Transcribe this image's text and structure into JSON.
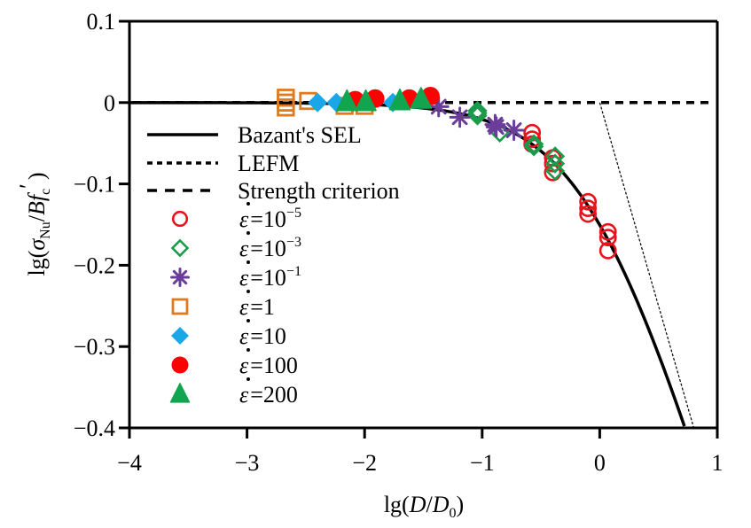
{
  "chart_data": {
    "type": "scatter",
    "title": "",
    "xlabel_parts": {
      "prefix": "lg(",
      "D": "D",
      "slash": "/",
      "D0": "D",
      "sub0": "0",
      "suffix": ")"
    },
    "xlabel": "lg(D/D0)",
    "ylabel": "lg(σNu/Bfc′)",
    "ylabel_parts": {
      "prefix": "lg(",
      "sigma": "σ",
      "sub": "Nu",
      "slash": "/",
      "B": "B",
      "f": "f",
      "fsub": "c",
      "prime": "′",
      "suffix": ")"
    },
    "xlim": [
      -4,
      1
    ],
    "ylim": [
      -0.4,
      0.1
    ],
    "xticks": [
      -4,
      -3,
      -2,
      -1,
      0,
      1
    ],
    "xtick_labels": [
      "−4",
      "−3",
      "−2",
      "−1",
      "0",
      "1"
    ],
    "yticks": [
      0.1,
      0,
      -0.1,
      -0.2,
      -0.3,
      -0.4
    ],
    "ytick_labels": [
      "0.1",
      "0",
      "−0.1",
      "−0.2",
      "−0.3",
      "−0.4"
    ],
    "grid": false,
    "legend_position": "left-center",
    "lines": [
      {
        "name": "Bazant's SEL",
        "style": "solid",
        "formula": "y = -0.5*lg(1+10^x)",
        "x_range": [
          -4,
          0.72
        ]
      },
      {
        "name": "LEFM",
        "style": "dotted",
        "formula": "y = -0.5*x",
        "x_range": [
          0,
          0.8
        ]
      },
      {
        "name": "Strength criterion",
        "style": "dashed",
        "formula": "y = 0",
        "x_range": [
          -4,
          1
        ]
      }
    ],
    "series": [
      {
        "name": "ε̇=10^-5",
        "label_base": "=10",
        "label_sup": "−5",
        "marker": "circle-open",
        "color": "#e8141b",
        "points": [
          [
            -0.575,
            -0.037
          ],
          [
            -0.575,
            -0.045
          ],
          [
            -0.575,
            -0.051
          ],
          [
            -0.4,
            -0.068
          ],
          [
            -0.4,
            -0.075
          ],
          [
            -0.4,
            -0.086
          ],
          [
            -0.1,
            -0.122
          ],
          [
            -0.1,
            -0.13
          ],
          [
            -0.1,
            -0.137
          ],
          [
            0.07,
            -0.159
          ],
          [
            0.07,
            -0.166
          ],
          [
            0.07,
            -0.182
          ]
        ]
      },
      {
        "name": "ε̇=10^-3",
        "label_base": "=10",
        "label_sup": "−3",
        "marker": "diamond-open",
        "color": "#1a9b4b",
        "points": [
          [
            -1.04,
            -0.01
          ],
          [
            -1.04,
            -0.013
          ],
          [
            -1.04,
            -0.016
          ],
          [
            -0.85,
            -0.037
          ],
          [
            -0.56,
            -0.051
          ],
          [
            -0.56,
            -0.054
          ],
          [
            -0.38,
            -0.066
          ],
          [
            -0.38,
            -0.075
          ],
          [
            -0.38,
            -0.084
          ]
        ]
      },
      {
        "name": "ε̇=10^-1",
        "label_base": "=10",
        "label_sup": "−1",
        "marker": "asterisk",
        "color": "#6a3d9a",
        "points": [
          [
            -1.37,
            -0.005
          ],
          [
            -1.19,
            -0.018
          ],
          [
            -0.89,
            -0.027
          ],
          [
            -0.88,
            -0.03
          ],
          [
            -0.73,
            -0.034
          ]
        ]
      },
      {
        "name": "ε̇=1",
        "label_base": "=1",
        "label_sup": "",
        "marker": "square-open",
        "color": "#e07a1f",
        "points": [
          [
            -2.67,
            0.006
          ],
          [
            -2.67,
            0.0
          ],
          [
            -2.67,
            -0.006
          ],
          [
            -2.48,
            0.002
          ],
          [
            -2.17,
            -0.004
          ],
          [
            -2.0,
            -0.004
          ]
        ]
      },
      {
        "name": "ε̇=10",
        "label_base": "=10",
        "label_sup": "",
        "marker": "diamond-filled",
        "color": "#1aa7e8",
        "points": [
          [
            -2.4,
            0.0
          ],
          [
            -2.24,
            0.0
          ],
          [
            -1.76,
            0.0
          ]
        ]
      },
      {
        "name": "ε̇=100",
        "label_base": "=100",
        "label_sup": "",
        "marker": "circle-filled",
        "color": "#ff0000",
        "points": [
          [
            -2.08,
            0.003
          ],
          [
            -1.91,
            0.005
          ],
          [
            -1.62,
            0.005
          ],
          [
            -1.44,
            0.008
          ]
        ]
      },
      {
        "name": "ε̇=200",
        "label_base": "=200",
        "label_sup": "",
        "marker": "triangle-filled",
        "color": "#12a550",
        "points": [
          [
            -2.15,
            0.001
          ],
          [
            -1.99,
            0.001
          ],
          [
            -1.7,
            0.002
          ],
          [
            -1.52,
            0.004
          ]
        ]
      }
    ],
    "legend_symbol": "ε"
  }
}
